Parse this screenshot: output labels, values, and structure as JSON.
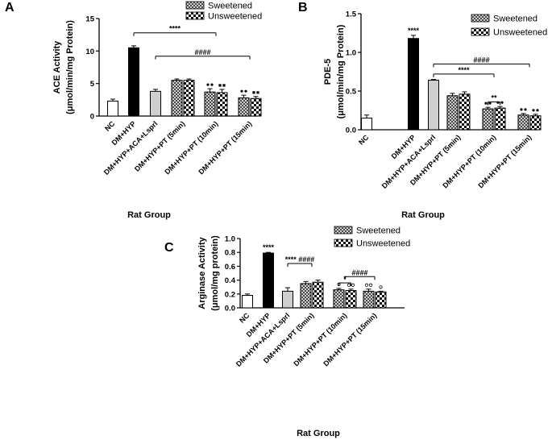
{
  "chart_data": [
    {
      "panel": "A",
      "type": "bar",
      "xlabel": "Rat Group",
      "ylabel_line1": "ACE Activity",
      "ylabel_line2": "(μmol/min/mg Protein)",
      "ylim": [
        0,
        15
      ],
      "yticks": [
        "0",
        "5",
        "10",
        "15"
      ],
      "legend": [
        "Sweetened",
        "Unsweetened"
      ],
      "categories": [
        "NC",
        "DM+HYP",
        "DM+HYP+ACA+Lsprl",
        "DM+HYP+PT (5min)",
        "DM+HYP+PT (10min)",
        "DM+HYP+PT (15min)"
      ],
      "bars": [
        {
          "group": 0,
          "kind": "white",
          "value": 2.3,
          "err": 0.3
        },
        {
          "group": 1,
          "kind": "black",
          "value": 10.5,
          "err": 0.3
        },
        {
          "group": 2,
          "kind": "gray",
          "value": 3.8,
          "err": 0.3
        },
        {
          "group": 3,
          "kind": "sweet",
          "value": 5.5,
          "err": 0.2
        },
        {
          "group": 3,
          "kind": "unsweet",
          "value": 5.5,
          "err": 0.2
        },
        {
          "group": 4,
          "kind": "sweet",
          "value": 3.7,
          "err": 0.5
        },
        {
          "group": 4,
          "kind": "unsweet",
          "value": 3.6,
          "err": 0.5
        },
        {
          "group": 5,
          "kind": "sweet",
          "value": 2.8,
          "err": 0.4
        },
        {
          "group": 5,
          "kind": "unsweet",
          "value": 2.7,
          "err": 0.3
        }
      ],
      "brackets": [
        {
          "from": 1,
          "to": 4,
          "y": 12.8,
          "label": "****"
        },
        {
          "from": 2,
          "to": 5,
          "y": 9.2,
          "label": "####"
        }
      ],
      "marks": [
        {
          "bar": 5,
          "symbol": "dot",
          "count": 2
        },
        {
          "bar": 6,
          "symbol": "square",
          "count": 2
        },
        {
          "bar": 7,
          "symbol": "dot",
          "count": 2
        },
        {
          "bar": 8,
          "symbol": "square",
          "count": 2
        }
      ]
    },
    {
      "panel": "B",
      "type": "bar",
      "xlabel": "Rat Group",
      "ylabel_line1": "PDE-5",
      "ylabel_line2": "(μmol/min/mg Protein)",
      "ylim": [
        0,
        1.5
      ],
      "yticks": [
        "0.0",
        "0.5",
        "1.0",
        "1.5"
      ],
      "legend": [
        "Sweetened",
        "Unsweetened"
      ],
      "categories": [
        "NC",
        "DM+HYP",
        "DM+HYP+ACA+Lsprl",
        "DM+HYP+PT (5min)",
        "DM+HYP+PT (10min)",
        "DM+HYP+PT (15min)"
      ],
      "bars": [
        {
          "group": 0,
          "kind": "white",
          "value": 0.15,
          "err": 0.04
        },
        {
          "group": 1,
          "kind": "black",
          "value": 1.18,
          "err": 0.04
        },
        {
          "group": 2,
          "kind": "gray",
          "value": 0.64,
          "err": 0.01
        },
        {
          "group": 3,
          "kind": "sweet",
          "value": 0.44,
          "err": 0.03
        },
        {
          "group": 3,
          "kind": "unsweet",
          "value": 0.46,
          "err": 0.03
        },
        {
          "group": 4,
          "kind": "sweet",
          "value": 0.27,
          "err": 0.02
        },
        {
          "group": 4,
          "kind": "unsweet",
          "value": 0.28,
          "err": 0.02
        },
        {
          "group": 5,
          "kind": "sweet",
          "value": 0.19,
          "err": 0.02
        },
        {
          "group": 5,
          "kind": "unsweet",
          "value": 0.18,
          "err": 0.02
        }
      ],
      "star_labels": [
        {
          "bar": 1,
          "text": "****"
        }
      ],
      "brackets": [
        {
          "from": 2,
          "to": 5,
          "y": 0.85,
          "label": "####"
        },
        {
          "from": 2,
          "to": 4,
          "y": 0.72,
          "label": "****"
        },
        {
          "bar_from": 5,
          "bar_to": 6,
          "y": 0.36,
          "label": "**"
        }
      ],
      "marks": [
        {
          "bar": 5,
          "symbol": "dot",
          "count": 2
        },
        {
          "bar": 6,
          "symbol": "dot",
          "count": 2
        },
        {
          "bar": 7,
          "symbol": "dot",
          "count": 2
        },
        {
          "bar": 8,
          "symbol": "dot",
          "count": 2
        }
      ]
    },
    {
      "panel": "C",
      "type": "bar",
      "xlabel": "Rat Group",
      "ylabel_line1": "Arginase Activity",
      "ylabel_line2": "(μmol/mg protein)",
      "ylim": [
        0,
        1.0
      ],
      "yticks": [
        "0.0",
        "0.2",
        "0.4",
        "0.6",
        "0.8",
        "1.0"
      ],
      "legend": [
        "Sweetened",
        "Unsweetened"
      ],
      "categories": [
        "NC",
        "DM+HYP",
        "DM+HYP+ACA+Lsprl",
        "DM+HYP+PT (5min)",
        "DM+HYP+PT (10min)",
        "DM+HYP+PT (15min)"
      ],
      "bars": [
        {
          "group": 0,
          "kind": "white",
          "value": 0.18,
          "err": 0.02
        },
        {
          "group": 1,
          "kind": "black",
          "value": 0.79,
          "err": 0.01
        },
        {
          "group": 2,
          "kind": "gray",
          "value": 0.24,
          "err": 0.05
        },
        {
          "group": 3,
          "kind": "sweet",
          "value": 0.35,
          "err": 0.03
        },
        {
          "group": 3,
          "kind": "unsweet",
          "value": 0.37,
          "err": 0.03
        },
        {
          "group": 4,
          "kind": "sweet",
          "value": 0.26,
          "err": 0.02
        },
        {
          "group": 4,
          "kind": "unsweet",
          "value": 0.25,
          "err": 0.02
        },
        {
          "group": 5,
          "kind": "sweet",
          "value": 0.24,
          "err": 0.03
        },
        {
          "group": 5,
          "kind": "unsweet",
          "value": 0.23,
          "err": 0.01
        }
      ],
      "star_labels": [
        {
          "bar": 1,
          "text": "****"
        }
      ],
      "brackets": [
        {
          "from": 2,
          "to": 3,
          "y": 0.64,
          "label": "**** ####"
        },
        {
          "from": 4,
          "to": 5,
          "y": 0.45,
          "label": "####"
        },
        {
          "bar_from": 5,
          "bar_to": 6,
          "y": 0.36,
          "label": "*"
        }
      ],
      "marks": [
        {
          "bar": 5,
          "symbol": "circle",
          "count": 1
        },
        {
          "bar": 6,
          "symbol": "circle",
          "count": 2
        },
        {
          "bar": 7,
          "symbol": "circle",
          "count": 2
        },
        {
          "bar": 8,
          "symbol": "circle",
          "count": 1
        }
      ]
    }
  ]
}
